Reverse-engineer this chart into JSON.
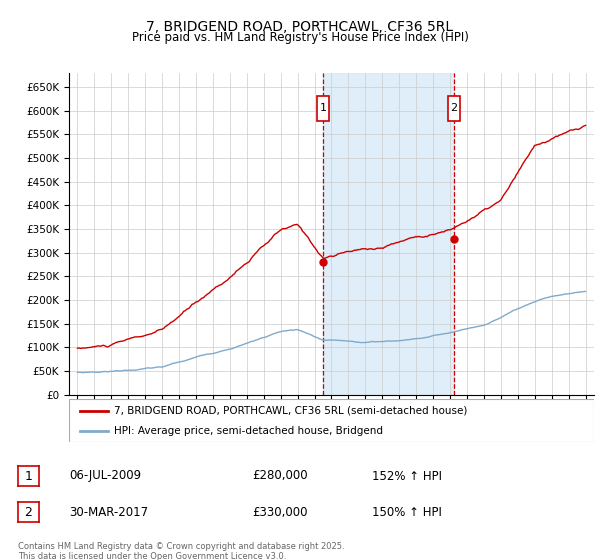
{
  "title": "7, BRIDGEND ROAD, PORTHCAWL, CF36 5RL",
  "subtitle": "Price paid vs. HM Land Registry's House Price Index (HPI)",
  "background_color": "#ffffff",
  "plot_bg_color": "#ffffff",
  "grid_color": "#cccccc",
  "red_line_color": "#cc0000",
  "blue_line_color": "#7faacc",
  "shade_color": "#d8eaf7",
  "vline_color": "#cc0000",
  "marker_box_color": "#cc0000",
  "ylim": [
    0,
    680000
  ],
  "yticks": [
    0,
    50000,
    100000,
    150000,
    200000,
    250000,
    300000,
    350000,
    400000,
    450000,
    500000,
    550000,
    600000,
    650000
  ],
  "ytick_labels": [
    "£0",
    "£50K",
    "£100K",
    "£150K",
    "£200K",
    "£250K",
    "£300K",
    "£350K",
    "£400K",
    "£450K",
    "£500K",
    "£550K",
    "£600K",
    "£650K"
  ],
  "sale1_date_num": 2009.51,
  "sale1_price": 280000,
  "sale1_label": "06-JUL-2009",
  "sale1_pct": "152% ↑ HPI",
  "sale2_date_num": 2017.24,
  "sale2_price": 330000,
  "sale2_label": "30-MAR-2017",
  "sale2_pct": "150% ↑ HPI",
  "legend_line1": "7, BRIDGEND ROAD, PORTHCAWL, CF36 5RL (semi-detached house)",
  "legend_line2": "HPI: Average price, semi-detached house, Bridgend",
  "footer": "Contains HM Land Registry data © Crown copyright and database right 2025.\nThis data is licensed under the Open Government Licence v3.0.",
  "xlim_start": 1994.5,
  "xlim_end": 2025.5
}
